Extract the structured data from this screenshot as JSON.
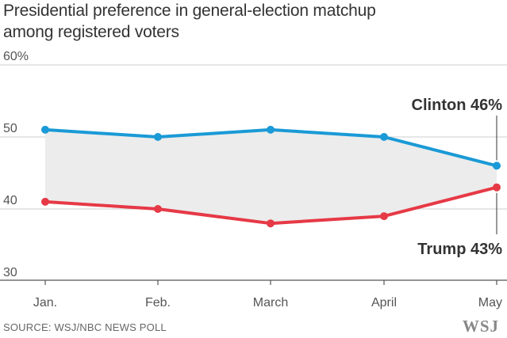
{
  "title_line1": "Presidential preference in general-election matchup",
  "title_line2": "among registered voters",
  "source": "SOURCE: WSJ/NBC NEWS POLL",
  "logo": "WSJ",
  "colors": {
    "clinton": "#1a9ad6",
    "trump": "#e63946",
    "band": "#ececec",
    "grid": "#cccccc",
    "axis": "#555555",
    "text": "#555555"
  },
  "chart_data": {
    "type": "line",
    "categories": [
      "Jan.",
      "Feb.",
      "March",
      "April",
      "May"
    ],
    "y_tick_labels": [
      "60%",
      "50",
      "40",
      "30"
    ],
    "y_ticks": [
      60,
      50,
      40,
      30
    ],
    "ylim": [
      30,
      60
    ],
    "grid": true,
    "shaded_gap": true,
    "series": [
      {
        "name": "Clinton",
        "values": [
          51,
          50,
          51,
          50,
          46
        ],
        "end_label": "Clinton 46%"
      },
      {
        "name": "Trump",
        "values": [
          41,
          40,
          38,
          39,
          43
        ],
        "end_label": "Trump 43%"
      }
    ]
  }
}
